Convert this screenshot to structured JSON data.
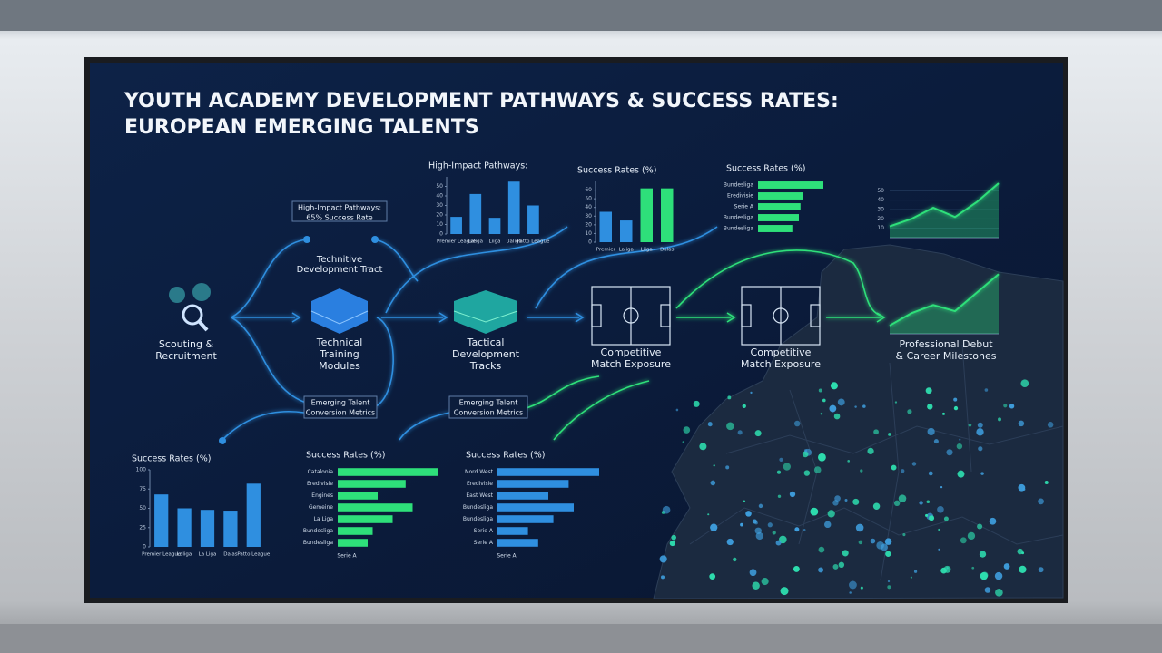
{
  "title": [
    "YOUTH ACADEMY DEVELOPMENT PATHWAYS & SUCCESS RATES:",
    "EUROPEAN EMERGING TALENTS"
  ],
  "nodes": [
    {
      "lines": [
        "Scouting &",
        "Recruitment"
      ]
    },
    {
      "lines": [
        "Technical",
        "Training",
        "Modules"
      ]
    },
    {
      "lines": [
        "Tactical",
        "Development",
        "Tracks"
      ]
    },
    {
      "lines": [
        "Competitive",
        "Match Exposure"
      ]
    },
    {
      "lines": [
        "Competitive",
        "Match Exposure"
      ]
    },
    {
      "lines": [
        "Professional Debut",
        "& Career Milestones"
      ]
    }
  ],
  "callouts": [
    {
      "lines": [
        "High-Impact Pathways:",
        "65% Success Rate"
      ]
    },
    {
      "lines": [
        "Technitive",
        "Development Tract"
      ]
    },
    {
      "lines": [
        "Emerging Talent",
        "Conversion Metrics"
      ]
    },
    {
      "lines": [
        "Emerging Talent",
        "Conversion Metrics"
      ]
    }
  ],
  "chart_data": [
    {
      "type": "bar",
      "title": "High-Impact Pathways:",
      "categories": [
        "Premier League",
        "Laliga",
        "Liiga",
        "Ualiga",
        "Patto League"
      ],
      "values": [
        18,
        42,
        17,
        55,
        30
      ],
      "color": "#2f8fe0",
      "ylim": [
        0,
        60
      ],
      "yticks": [
        0,
        10,
        20,
        30,
        40,
        50
      ]
    },
    {
      "type": "bar",
      "title": "Success Rates (%)",
      "categories": [
        "Premier",
        "Laliga",
        "Liiga",
        "Dalas"
      ],
      "values": [
        35,
        25,
        62,
        62
      ],
      "colors": [
        "#2f8fe0",
        "#2f8fe0",
        "#2ee07a",
        "#2ee07a"
      ],
      "ylim": [
        0,
        70
      ],
      "yticks": [
        0,
        10,
        20,
        30,
        40,
        50,
        60
      ]
    },
    {
      "type": "hbar",
      "title": "Success Rates (%)",
      "categories": [
        "Bundesliga",
        "Eredivisie",
        "Serie A",
        "Bundesliga",
        "Bundesliga"
      ],
      "values": [
        80,
        55,
        52,
        50,
        42
      ],
      "color": "#2ee07a",
      "xlim": [
        0,
        100
      ]
    },
    {
      "type": "area",
      "x": [
        0,
        1,
        2,
        3,
        4,
        5
      ],
      "values": [
        12,
        20,
        32,
        22,
        38,
        58
      ],
      "color": "#2ee07a",
      "ylim": [
        0,
        60
      ],
      "yticks": [
        10,
        20,
        30,
        40,
        50
      ]
    },
    {
      "type": "bar",
      "title": "Success Rates (%)",
      "categories": [
        "Premier League",
        "Laliga",
        "La Liga",
        "Dalas",
        "Patto League"
      ],
      "values": [
        68,
        50,
        48,
        47,
        82
      ],
      "color": "#2f8fe0",
      "ylim": [
        0,
        100
      ],
      "yticks": [
        0,
        25,
        50,
        75,
        100
      ]
    },
    {
      "type": "hbar",
      "title": "Success Rates (%)",
      "categories": [
        "Catalonia",
        "Eredivisie",
        "Engines",
        "Gemeine",
        "La Liga",
        "Bundesliga",
        "Bundesliga"
      ],
      "values": [
        100,
        68,
        40,
        75,
        55,
        35,
        30
      ],
      "color": "#2ee07a",
      "xlim": [
        0,
        100
      ],
      "xlabel": "Serie A"
    },
    {
      "type": "hbar",
      "title": "Success Rates (%)",
      "categories": [
        "Nord West",
        "Eredivisie",
        "East West",
        "Bundesliga",
        "Bundesliga",
        "Serie A",
        "Serie A"
      ],
      "values": [
        100,
        70,
        50,
        75,
        55,
        30,
        40
      ],
      "color": "#2f8fe0",
      "xlim": [
        0,
        100
      ],
      "xlabel": "Serie A"
    },
    {
      "type": "area",
      "x": [
        0,
        1,
        2,
        3,
        4,
        5
      ],
      "values": [
        8,
        20,
        28,
        22,
        40,
        58
      ],
      "color": "#2ee07a",
      "ylim": [
        0,
        60
      ]
    }
  ]
}
